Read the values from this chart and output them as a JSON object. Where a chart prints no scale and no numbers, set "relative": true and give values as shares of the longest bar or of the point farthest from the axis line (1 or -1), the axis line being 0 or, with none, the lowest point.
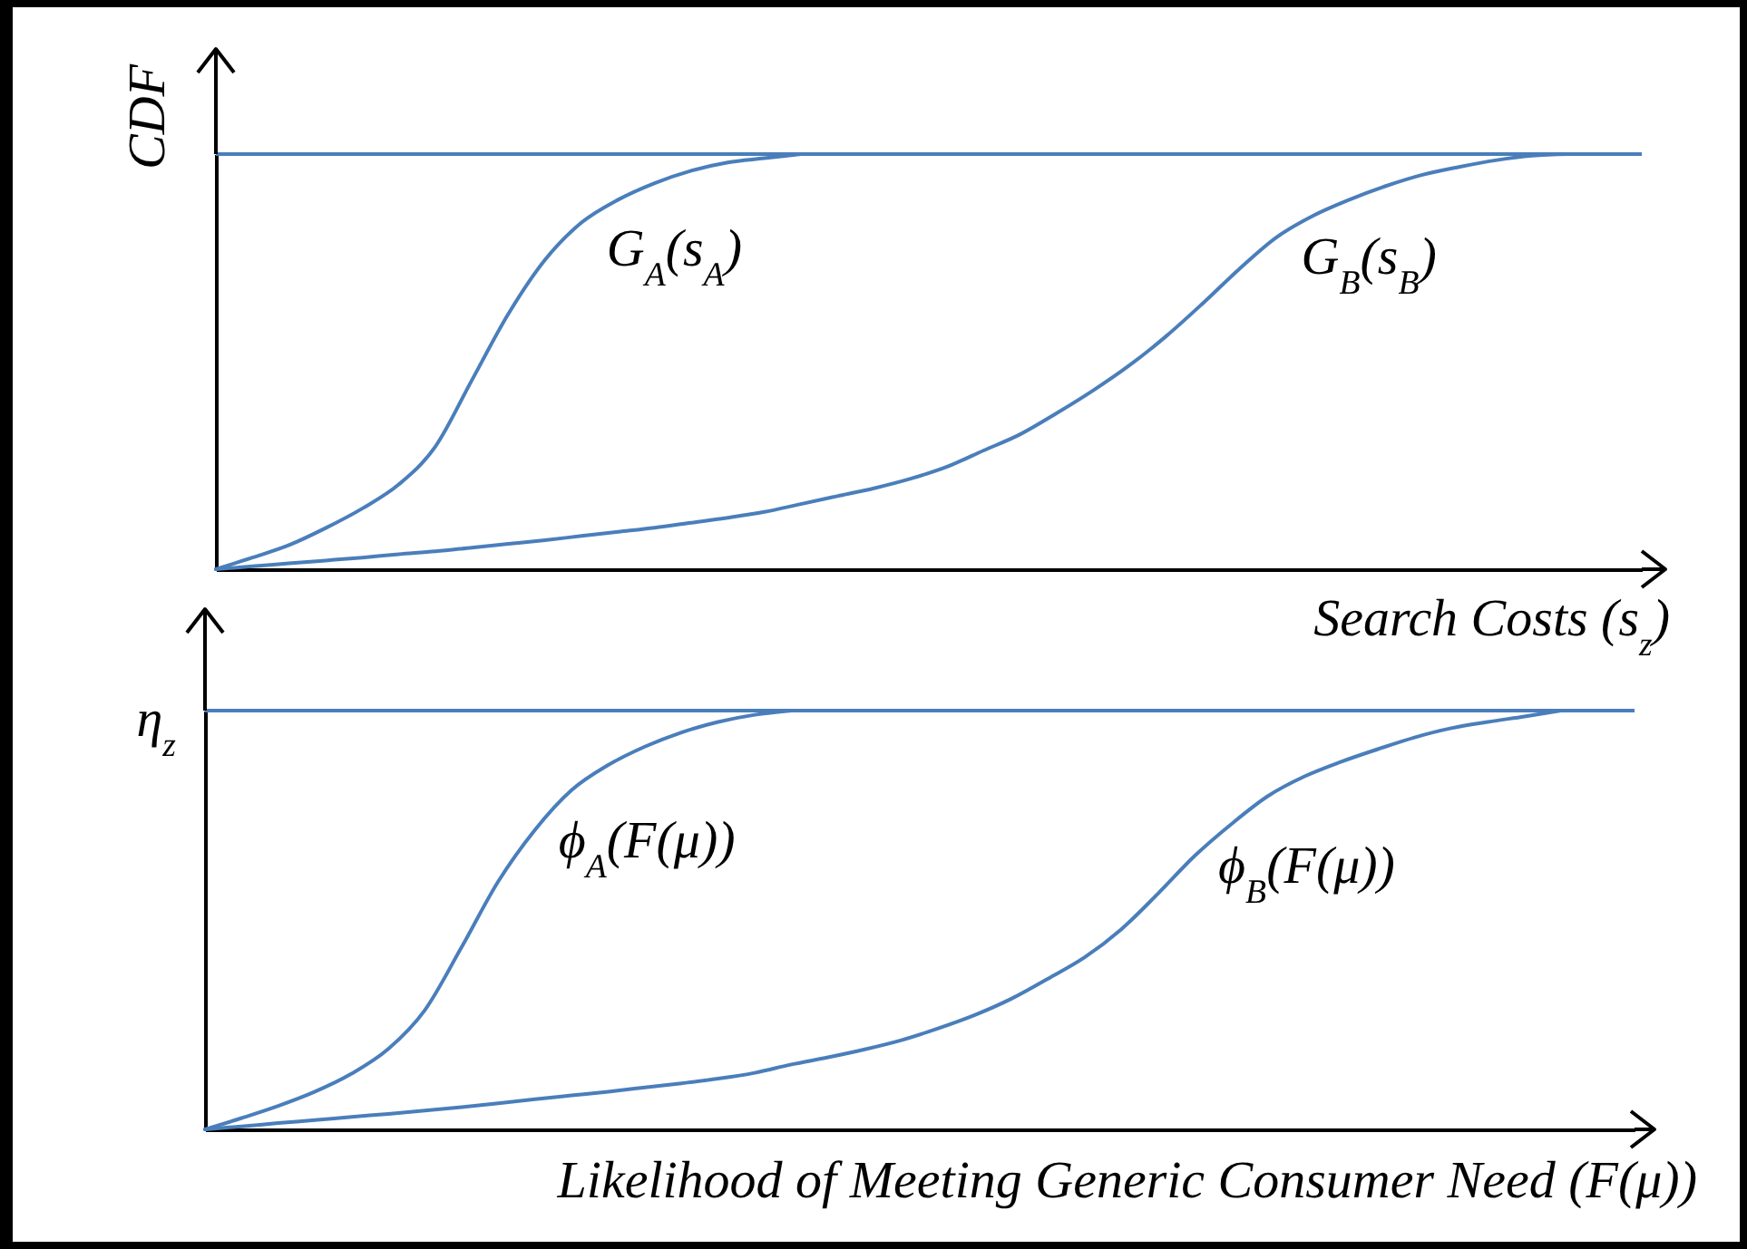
{
  "chart_data": [
    {
      "type": "line",
      "relative": true,
      "ylabel": "CDF",
      "xlabel": "Search Costs (s$_{z}$)",
      "categories": [
        null,
        null,
        null,
        null,
        null,
        null,
        null,
        null,
        null,
        null,
        null,
        null,
        null,
        null,
        null,
        null,
        null,
        null,
        null,
        null,
        null,
        null,
        null,
        null,
        null,
        null,
        null,
        null,
        null,
        null,
        null,
        null,
        null,
        null,
        null,
        null,
        null,
        null,
        null,
        null
      ],
      "series": [
        {
          "name": "G$_{A}$(s$_{A}$)",
          "color": "#4a7ebb",
          "values": [
            0,
            0.028,
            0.058,
            0.099,
            0.146,
            0.204,
            0.295,
            0.455,
            0.615,
            0.745,
            0.835,
            0.89,
            0.93,
            0.96,
            0.98,
            0.99,
            1,
            null,
            null,
            null,
            null,
            null,
            null,
            null,
            null,
            null,
            null,
            null,
            null,
            null,
            null,
            null,
            null,
            null,
            null,
            null,
            null,
            null,
            null,
            null
          ]
        },
        {
          "name": "G$_{B}$(s$_{B}$)",
          "color": "#4a7ebb",
          "values": [
            0,
            0.007,
            0.014,
            0.021,
            0.028,
            0.036,
            0.043,
            0.052,
            0.061,
            0.07,
            0.08,
            0.09,
            0.1,
            0.112,
            0.124,
            0.138,
            0.157,
            0.176,
            0.195,
            0.218,
            0.247,
            0.286,
            0.325,
            0.376,
            0.431,
            0.492,
            0.562,
            0.641,
            0.724,
            0.799,
            0.851,
            0.89,
            0.923,
            0.95,
            0.969,
            0.985,
            0.996,
            1,
            null,
            null
          ]
        }
      ],
      "ref_lines": [
        {
          "axis": "y",
          "value": 1,
          "color": "#4a7ebb"
        }
      ]
    },
    {
      "type": "line",
      "relative": true,
      "xlabel": "Likelihood of Meeting Generic Consumer Need (F(μ))",
      "categories": [
        null,
        null,
        null,
        null,
        null,
        null,
        null,
        null,
        null,
        null,
        null,
        null,
        null,
        null,
        null,
        null,
        null,
        null,
        null,
        null,
        null,
        null,
        null,
        null,
        null,
        null,
        null,
        null,
        null,
        null,
        null,
        null,
        null,
        null,
        null,
        null,
        null,
        null,
        null,
        null
      ],
      "series": [
        {
          "name": "ϕ$_{A}$(F(μ))",
          "color": "#4a7ebb",
          "values": [
            0,
            0.027,
            0.056,
            0.09,
            0.133,
            0.192,
            0.285,
            0.435,
            0.592,
            0.715,
            0.81,
            0.87,
            0.914,
            0.948,
            0.973,
            0.99,
            1,
            null,
            null,
            null,
            null,
            null,
            null,
            null,
            null,
            null,
            null,
            null,
            null,
            null,
            null,
            null,
            null,
            null,
            null,
            null,
            null,
            null,
            null,
            null
          ]
        },
        {
          "name": "ϕ$_{B}$(F(μ))",
          "color": "#4a7ebb",
          "values": [
            0,
            0.007,
            0.015,
            0.022,
            0.03,
            0.037,
            0.045,
            0.053,
            0.062,
            0.072,
            0.081,
            0.09,
            0.1,
            0.11,
            0.121,
            0.135,
            0.155,
            0.172,
            0.191,
            0.213,
            0.241,
            0.273,
            0.312,
            0.36,
            0.411,
            0.478,
            0.563,
            0.653,
            0.729,
            0.796,
            0.843,
            0.878,
            0.908,
            0.936,
            0.958,
            0.973,
            0.986,
            1,
            null,
            null
          ]
        }
      ],
      "ref_lines": [
        {
          "axis": "y",
          "value": 1,
          "color": "#4a7ebb",
          "label": "η$_{z}$"
        }
      ]
    }
  ]
}
